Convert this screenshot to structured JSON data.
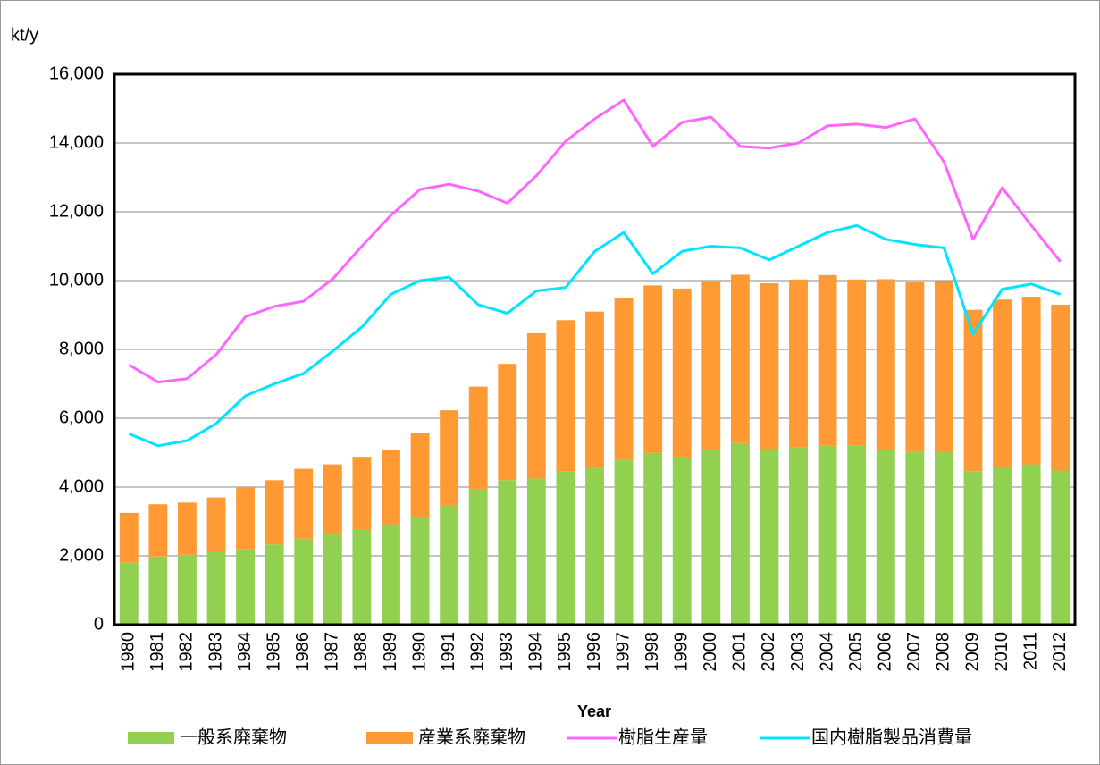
{
  "chart_data": {
    "type": "bar",
    "stacked": true,
    "y_axis_label": "kt/y",
    "x_axis_label": "Year",
    "categories": [
      "1980",
      "1981",
      "1982",
      "1983",
      "1984",
      "1985",
      "1986",
      "1987",
      "1988",
      "1989",
      "1990",
      "1991",
      "1992",
      "1993",
      "1994",
      "1995",
      "1996",
      "1997",
      "1998",
      "1999",
      "2000",
      "2001",
      "2002",
      "2003",
      "2004",
      "2005",
      "2006",
      "2007",
      "2008",
      "2009",
      "2010",
      "2011",
      "2012"
    ],
    "series": [
      {
        "name": "一般系廃棄物",
        "type": "bar",
        "color": "#92d050",
        "values": [
          1800,
          1980,
          2030,
          2150,
          2200,
          2330,
          2500,
          2620,
          2760,
          2920,
          3130,
          3460,
          3930,
          4200,
          4250,
          4450,
          4560,
          4790,
          4990,
          4860,
          5100,
          5280,
          5090,
          5150,
          5200,
          5200,
          5080,
          5020,
          5040,
          4460,
          4590,
          4660,
          4480
        ]
      },
      {
        "name": "産業系廃棄物",
        "type": "bar",
        "color": "#ff9933",
        "values": [
          1450,
          1520,
          1520,
          1550,
          1800,
          1870,
          2030,
          2040,
          2120,
          2150,
          2450,
          2770,
          2990,
          3380,
          4220,
          4400,
          4540,
          4710,
          4870,
          4910,
          4880,
          4890,
          4830,
          4880,
          4960,
          4830,
          4960,
          4930,
          4950,
          4690,
          4860,
          4870,
          4820
        ]
      },
      {
        "name": "樹脂生産量",
        "type": "line",
        "color": "#ff66ff",
        "values": [
          7550,
          7050,
          7150,
          7850,
          8950,
          9250,
          9400,
          10050,
          11000,
          11900,
          12650,
          12800,
          12600,
          12250,
          13050,
          14050,
          14700,
          15250,
          13900,
          14600,
          14750,
          13900,
          13850,
          14000,
          14500,
          14550,
          14450,
          14700,
          13450,
          11200,
          12700,
          11600,
          10550
        ]
      },
      {
        "name": "国内樹脂製品消費量",
        "type": "line",
        "color": "#00e5ff",
        "values": [
          5550,
          5200,
          5350,
          5850,
          6650,
          7000,
          7300,
          7950,
          8650,
          9600,
          10000,
          10100,
          9300,
          9050,
          9700,
          9800,
          10850,
          11400,
          10200,
          10850,
          11000,
          10950,
          10600,
          11000,
          11400,
          11600,
          11200,
          11050,
          10950,
          8450,
          9750,
          9900,
          9600
        ]
      }
    ],
    "ylim": [
      0,
      16000
    ],
    "yticks": [
      0,
      {
        "value": 2000,
        "label": "2,000"
      },
      {
        "value": 4000,
        "label": "4,000"
      },
      {
        "value": 6000,
        "label": "6,000"
      },
      {
        "value": 8000,
        "label": "8,000"
      },
      {
        "value": 10000,
        "label": "10,000"
      },
      {
        "value": 12000,
        "label": "12,000"
      },
      {
        "value": 14000,
        "label": "14,000"
      },
      {
        "value": 16000,
        "label": "16,000"
      }
    ],
    "grid": true,
    "legend": "bottom"
  }
}
